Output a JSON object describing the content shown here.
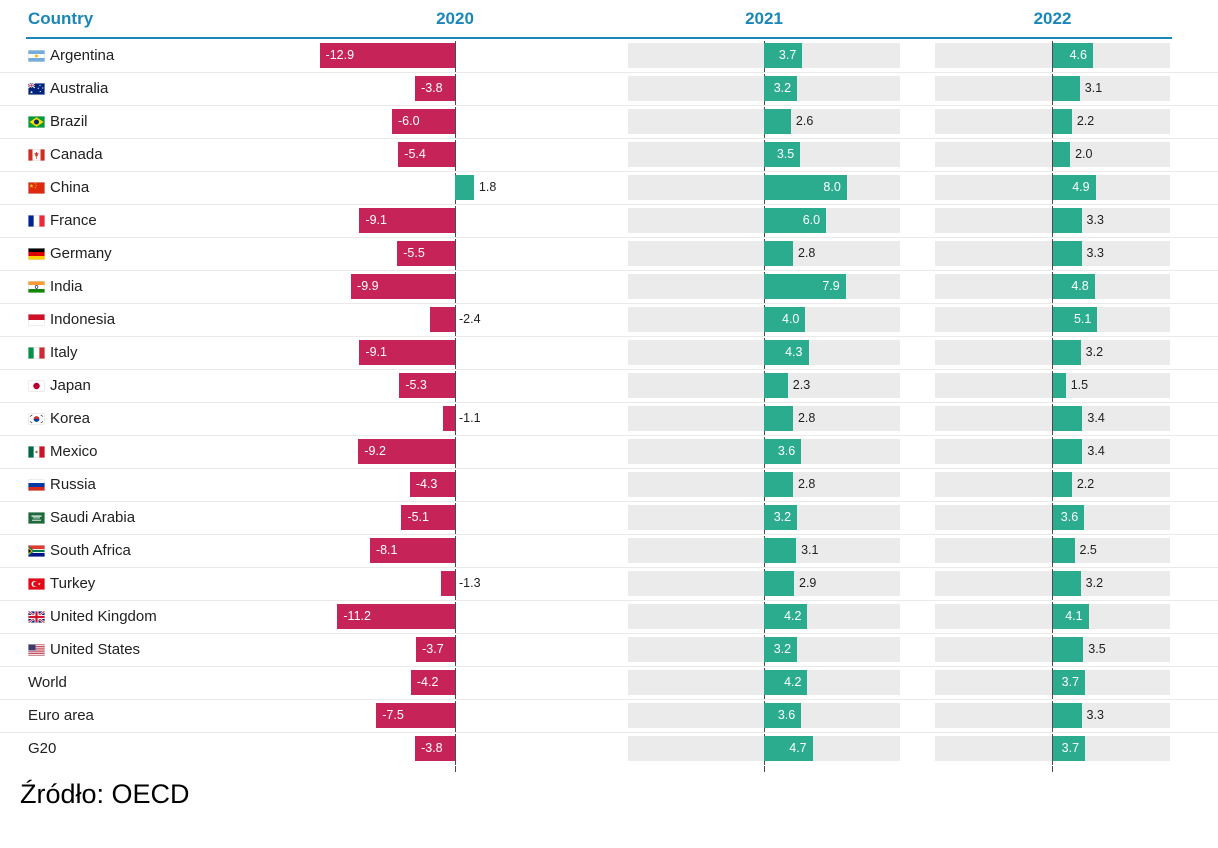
{
  "header": {
    "country_label": "Country",
    "years": [
      "2020",
      "2021",
      "2022"
    ]
  },
  "source": "Źródło: OECD",
  "colors": {
    "negative_bar": "#c62458",
    "positive_bar": "#2bac8e",
    "header_text": "#1a87b8",
    "track": "#ebebeb"
  },
  "chart_data": {
    "type": "bar",
    "orientation": "horizontal",
    "value_unit": "percent GDP growth",
    "grid": false,
    "axis_range_per_column": [
      -13,
      13
    ],
    "categories": [
      "Argentina",
      "Australia",
      "Brazil",
      "Canada",
      "China",
      "France",
      "Germany",
      "India",
      "Indonesia",
      "Italy",
      "Japan",
      "Korea",
      "Mexico",
      "Russia",
      "Saudi Arabia",
      "South Africa",
      "Turkey",
      "United Kingdom",
      "United States",
      "World",
      "Euro area",
      "G20"
    ],
    "flags": [
      "ar",
      "au",
      "br",
      "ca",
      "cn",
      "fr",
      "de",
      "in",
      "id",
      "it",
      "jp",
      "kr",
      "mx",
      "ru",
      "sa",
      "za",
      "tr",
      "gb",
      "us",
      null,
      null,
      null
    ],
    "series": [
      {
        "name": "2020",
        "values": [
          -12.9,
          -3.8,
          -6.0,
          -5.4,
          1.8,
          -9.1,
          -5.5,
          -9.9,
          -2.4,
          -9.1,
          -5.3,
          -1.1,
          -9.2,
          -4.3,
          -5.1,
          -8.1,
          -1.3,
          -11.2,
          -3.7,
          -4.2,
          -7.5,
          -3.8
        ]
      },
      {
        "name": "2021",
        "values": [
          3.7,
          3.2,
          2.6,
          3.5,
          8.0,
          6.0,
          2.8,
          7.9,
          4.0,
          4.3,
          2.3,
          2.8,
          3.6,
          2.8,
          3.2,
          3.1,
          2.9,
          4.2,
          3.2,
          4.2,
          3.6,
          4.7
        ]
      },
      {
        "name": "2022",
        "values": [
          4.6,
          3.1,
          2.2,
          2.0,
          4.9,
          3.3,
          3.3,
          4.8,
          5.1,
          3.2,
          1.5,
          3.4,
          3.4,
          2.2,
          3.6,
          2.5,
          3.2,
          4.1,
          3.5,
          3.7,
          3.3,
          3.7
        ]
      }
    ]
  }
}
